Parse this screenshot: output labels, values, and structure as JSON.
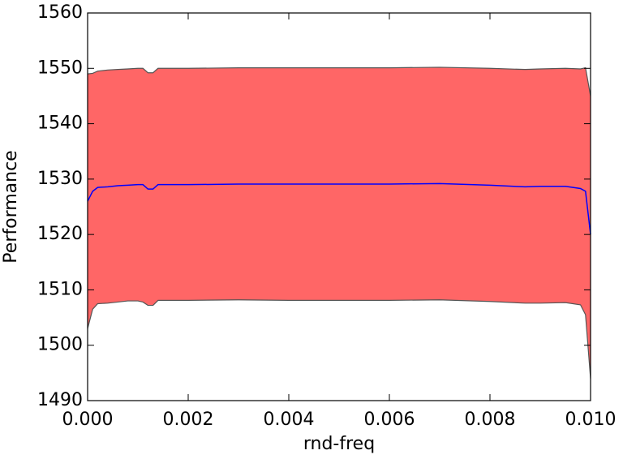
{
  "chart_data": {
    "type": "line",
    "xlabel": "rnd-freq",
    "ylabel": "Performance",
    "x": [
      0,
      0.0001,
      0.0002,
      0.0004,
      0.0006,
      0.0008,
      0.001,
      0.0011,
      0.0012,
      0.0013,
      0.0014,
      0.002,
      0.003,
      0.004,
      0.005,
      0.006,
      0.007,
      0.008,
      0.0087,
      0.009,
      0.0095,
      0.0098,
      0.0099,
      0.01
    ],
    "series": [
      {
        "color": "#0000ff",
        "values": [
          1526,
          1527.8,
          1528.5,
          1528.6,
          1528.8,
          1528.9,
          1529,
          1529,
          1528.2,
          1528.2,
          1529,
          1529,
          1529.1,
          1529.1,
          1529.1,
          1529.1,
          1529.2,
          1528.9,
          1528.6,
          1528.7,
          1528.7,
          1528.3,
          1527.8,
          1520
        ]
      }
    ],
    "band": {
      "color": "#ff6666",
      "edge_color": "#555555",
      "upper": [
        1549,
        1549.1,
        1549.5,
        1549.7,
        1549.8,
        1549.9,
        1550,
        1550,
        1549.2,
        1549.2,
        1550,
        1550,
        1550.1,
        1550.1,
        1550.1,
        1550.1,
        1550.2,
        1550,
        1549.8,
        1549.9,
        1550,
        1549.9,
        1550.1,
        1545
      ],
      "lower": [
        1503,
        1506.5,
        1507.5,
        1507.6,
        1507.8,
        1508,
        1508,
        1507.8,
        1507.2,
        1507.2,
        1508.1,
        1508.1,
        1508.2,
        1508.1,
        1508.1,
        1508.1,
        1508.2,
        1507.9,
        1507.6,
        1507.6,
        1507.7,
        1507.3,
        1505.5,
        1494
      ]
    },
    "xlim": [
      0,
      0.01
    ],
    "ylim": [
      1490,
      1560
    ],
    "xticks": [
      {
        "value": 0,
        "label": "0.000"
      },
      {
        "value": 0.002,
        "label": "0.002"
      },
      {
        "value": 0.004,
        "label": "0.004"
      },
      {
        "value": 0.006,
        "label": "0.006"
      },
      {
        "value": 0.008,
        "label": "0.008"
      },
      {
        "value": 0.01,
        "label": "0.010"
      }
    ],
    "yticks": [
      1490,
      1500,
      1510,
      1520,
      1530,
      1540,
      1550,
      1560
    ],
    "grid": false
  }
}
